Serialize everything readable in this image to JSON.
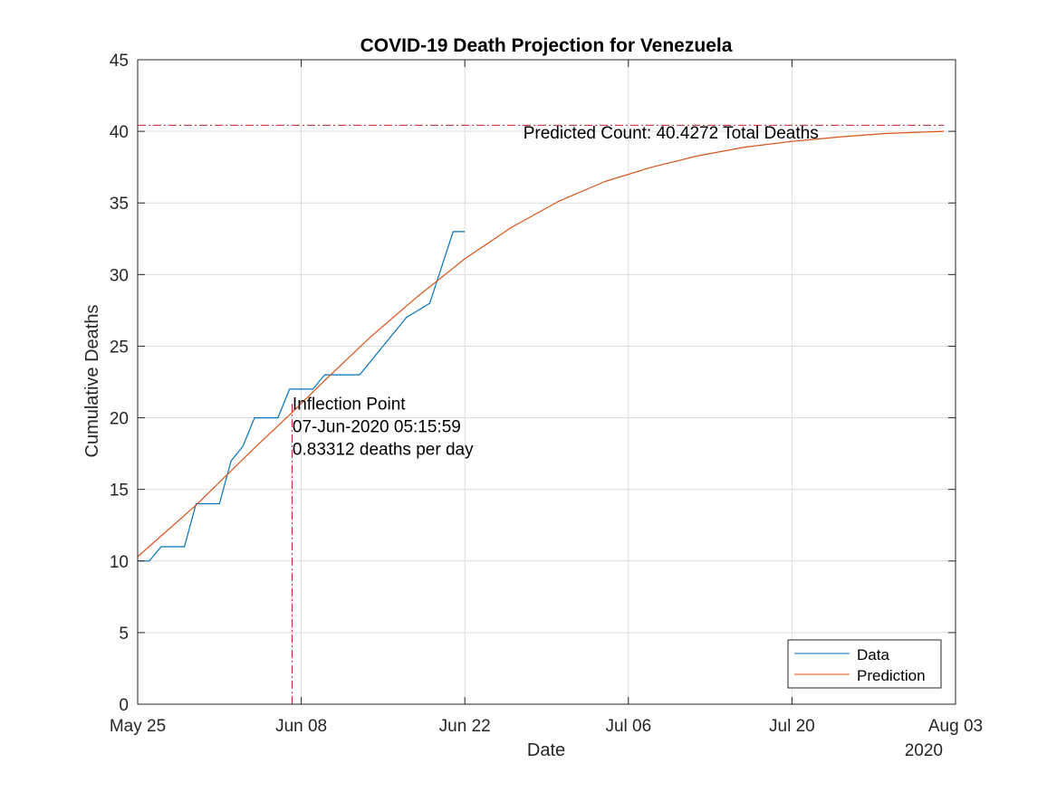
{
  "chart_data": {
    "type": "line",
    "title": "COVID-19 Death Projection for Venezuela",
    "xlabel": "Date",
    "ylabel": "Cumulative Deaths",
    "year_label": "2020",
    "xlim": [
      "2020-05-25",
      "2020-08-03"
    ],
    "ylim": [
      0,
      45
    ],
    "x_ticks": [
      "May 25",
      "Jun 08",
      "Jun 22",
      "Jul 06",
      "Jul 20",
      "Aug 03"
    ],
    "y_ticks": [
      0,
      5,
      10,
      15,
      20,
      25,
      30,
      35,
      40,
      45
    ],
    "grid": true,
    "legend_location": "bottom-right",
    "series": [
      {
        "name": "Data",
        "color": "#0072BD",
        "points": [
          [
            "2020-05-25",
            10
          ],
          [
            "2020-05-26",
            10
          ],
          [
            "2020-05-27",
            11
          ],
          [
            "2020-05-28",
            11
          ],
          [
            "2020-05-29",
            11
          ],
          [
            "2020-05-30",
            14
          ],
          [
            "2020-05-31",
            14
          ],
          [
            "2020-06-01",
            14
          ],
          [
            "2020-06-02",
            17
          ],
          [
            "2020-06-03",
            18
          ],
          [
            "2020-06-04",
            20
          ],
          [
            "2020-06-05",
            20
          ],
          [
            "2020-06-06",
            20
          ],
          [
            "2020-06-07",
            22
          ],
          [
            "2020-06-08",
            22
          ],
          [
            "2020-06-09",
            22
          ],
          [
            "2020-06-10",
            23
          ],
          [
            "2020-06-11",
            23
          ],
          [
            "2020-06-12",
            23
          ],
          [
            "2020-06-13",
            23
          ],
          [
            "2020-06-14",
            24
          ],
          [
            "2020-06-15",
            25
          ],
          [
            "2020-06-16",
            26
          ],
          [
            "2020-06-17",
            27
          ],
          [
            "2020-06-18",
            27.5
          ],
          [
            "2020-06-19",
            28
          ],
          [
            "2020-06-20",
            30.5
          ],
          [
            "2020-06-21",
            33
          ],
          [
            "2020-06-22",
            33
          ]
        ]
      },
      {
        "name": "Prediction",
        "color": "#D95319",
        "points": [
          [
            "2020-05-25",
            10.3
          ],
          [
            "2020-05-30",
            13.9
          ],
          [
            "2020-06-04",
            17.9
          ],
          [
            "2020-06-07",
            20.2
          ],
          [
            "2020-06-10",
            22.6
          ],
          [
            "2020-06-14",
            25.7
          ],
          [
            "2020-06-18",
            28.5
          ],
          [
            "2020-06-22",
            31.1
          ],
          [
            "2020-06-26",
            33.3
          ],
          [
            "2020-06-30",
            35.1
          ],
          [
            "2020-07-04",
            36.5
          ],
          [
            "2020-07-08",
            37.5
          ],
          [
            "2020-07-12",
            38.3
          ],
          [
            "2020-07-16",
            38.9
          ],
          [
            "2020-07-20",
            39.3
          ],
          [
            "2020-07-24",
            39.6
          ],
          [
            "2020-07-28",
            39.85
          ],
          [
            "2020-08-02",
            40.0
          ]
        ]
      }
    ],
    "reference_lines": {
      "color": "#C81E2D",
      "horizontal": {
        "y": 40.4272,
        "x_start": "2020-05-25",
        "x_end": "2020-08-02"
      },
      "vertical": {
        "x": "2020-06-07T05:15:59",
        "y_start": 0,
        "y_end": 21.2
      }
    },
    "annotations": {
      "predicted_count": {
        "text": "Predicted Count: 40.4272 Total Deaths",
        "x": "2020-06-27",
        "y": 39.5
      },
      "inflection": {
        "x": "2020-06-07T06:00:00",
        "y": 21.0,
        "lines": [
          "Inflection Point",
          "07-Jun-2020 05:15:59",
          "0.83312 deaths per day"
        ]
      }
    }
  }
}
